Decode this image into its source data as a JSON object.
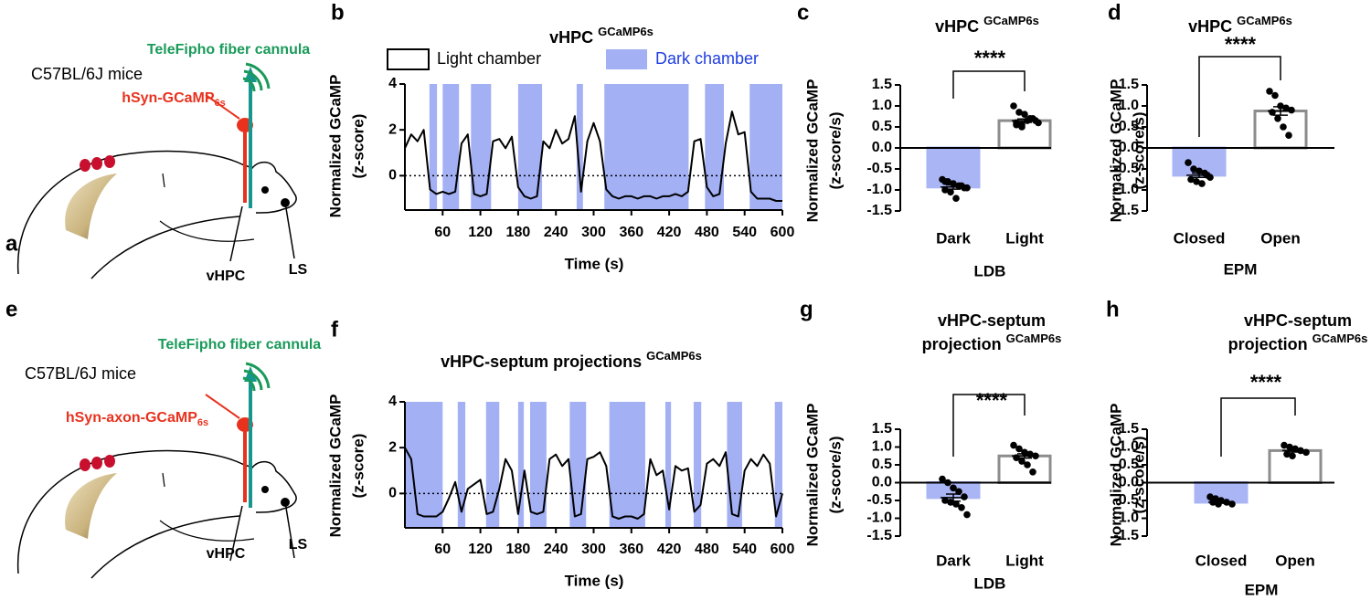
{
  "diagrams": [
    {
      "panel": "a",
      "cannula": "TeleFipho fiber cannula",
      "strain": "C57BL/6J mice",
      "virus": "hSyn-GCaMP",
      "virus_subscript": "6s",
      "region": "vHPC",
      "target": "LS"
    },
    {
      "panel": "e",
      "cannula": "TeleFipho fiber cannula",
      "strain": "C57BL/6J mice",
      "virus": "hSyn-axon-GCaMP",
      "virus_subscript": "6s",
      "region": "vHPC",
      "target": "LS"
    }
  ],
  "chart_data": [
    {
      "panel": "b",
      "type": "line",
      "title": "vHPC",
      "title_superscript": "GCaMP6s",
      "xlabel": "Time (s)",
      "ylabel": [
        "Normalized GCaMP",
        "(z-score)"
      ],
      "x": [
        0,
        10,
        20,
        30,
        40,
        50,
        60,
        70,
        80,
        90,
        100,
        110,
        120,
        130,
        140,
        150,
        160,
        170,
        180,
        190,
        200,
        210,
        220,
        230,
        240,
        250,
        260,
        270,
        280,
        290,
        300,
        310,
        320,
        330,
        340,
        350,
        360,
        370,
        380,
        390,
        400,
        410,
        420,
        430,
        440,
        450,
        460,
        470,
        480,
        490,
        500,
        510,
        520,
        530,
        540,
        550,
        560,
        570,
        580,
        590,
        600
      ],
      "series": [
        {
          "color": "#000000",
          "values": [
            1.2,
            1.8,
            1.5,
            2.0,
            -0.6,
            -0.8,
            -0.7,
            -0.8,
            -0.7,
            1.4,
            1.8,
            -0.8,
            -0.9,
            -0.8,
            1.5,
            1.6,
            1.2,
            1.7,
            -0.5,
            -0.9,
            -1.0,
            -0.9,
            1.5,
            1.2,
            2.0,
            1.4,
            1.6,
            2.6,
            -0.7,
            1.5,
            2.3,
            1.5,
            -0.6,
            -0.9,
            -1.0,
            -0.9,
            -0.9,
            -1.0,
            -0.9,
            -0.9,
            -1.0,
            -0.9,
            -0.9,
            -0.8,
            -0.9,
            -0.7,
            1.5,
            1.6,
            -0.5,
            -0.9,
            -0.8,
            1.4,
            2.8,
            1.8,
            1.9,
            -0.7,
            -1.0,
            -1.0,
            -1.0,
            -1.1,
            -1.1
          ]
        }
      ],
      "shaded": [
        [
          39,
          51
        ],
        [
          60,
          86
        ],
        [
          105,
          137
        ],
        [
          180,
          218
        ],
        [
          273,
          283
        ],
        [
          317,
          451
        ],
        [
          477,
          507
        ],
        [
          548,
          600
        ]
      ],
      "shade_color": "#a3b0f4",
      "reference_line": 0,
      "legend": [
        {
          "name": "Light chamber",
          "color": "#ffffff"
        },
        {
          "name": "Dark chamber",
          "color": "#a3b0f4",
          "text_color": "#1f3de0"
        }
      ],
      "xlim": [
        0,
        600
      ],
      "ylim": [
        -1.5,
        4
      ],
      "xticks": [
        60,
        120,
        180,
        240,
        300,
        360,
        420,
        480,
        540,
        600
      ],
      "yticks": [
        0,
        2,
        4
      ]
    },
    {
      "panel": "c",
      "type": "bar",
      "title": "vHPC",
      "title_superscript": "GCaMP6s",
      "xlabel": "LDB",
      "ylabel": [
        "Normalized GCaMP",
        "(z-score/s)"
      ],
      "categories": [
        "Dark",
        "Light"
      ],
      "values": [
        -0.93,
        0.65
      ],
      "errors": [
        0.05,
        0.04
      ],
      "colors": [
        "#a9b5f4",
        "#ffffff"
      ],
      "edge_colors": [
        "#a9b5f4",
        "#8c8c8c"
      ],
      "points": [
        [
          -0.75,
          -0.8,
          -0.85,
          -0.9,
          -0.95,
          -1.0,
          -1.05,
          -1.2,
          -0.9,
          -0.95,
          -0.8
        ],
        [
          1.0,
          0.85,
          0.8,
          0.7,
          0.65,
          0.6,
          0.55,
          0.65,
          0.7,
          0.6,
          0.55,
          0.5
        ]
      ],
      "significance": "****",
      "ylim": [
        -1.5,
        1.5
      ],
      "yticks": [
        -1.5,
        {
          "value": -1,
          "label": "-1.0"
        },
        -0.5,
        {
          "value": 0,
          "label": "0.0"
        },
        0.5,
        {
          "value": 1,
          "label": "1.0"
        },
        1.5
      ]
    },
    {
      "panel": "d",
      "type": "bar",
      "title": "vHPC",
      "title_superscript": "GCaMP6s",
      "xlabel": "EPM",
      "ylabel": [
        "Normalized GCaMP",
        "(z-score/s)"
      ],
      "categories": [
        "Closed",
        "Open"
      ],
      "values": [
        -0.65,
        0.88
      ],
      "errors": [
        0.05,
        0.1
      ],
      "colors": [
        "#a9b5f4",
        "#ffffff"
      ],
      "edge_colors": [
        "#a9b5f4",
        "#8c8c8c"
      ],
      "points": [
        [
          -0.35,
          -0.5,
          -0.55,
          -0.6,
          -0.7,
          -0.75,
          -0.8,
          -0.85,
          -0.65
        ],
        [
          1.35,
          1.25,
          1.0,
          0.95,
          0.9,
          0.85,
          0.7,
          0.5,
          0.3
        ]
      ],
      "significance": "****",
      "ylim": [
        -1.5,
        1.5
      ],
      "yticks": [
        -1.5,
        {
          "value": -1,
          "label": "-1.0"
        },
        -0.5,
        {
          "value": 0,
          "label": "0.0"
        },
        0.5,
        {
          "value": 1,
          "label": "1.0"
        },
        1.5
      ]
    },
    {
      "panel": "f",
      "type": "line",
      "title": "vHPC-septum projections",
      "title_superscript": "GCaMP6s",
      "xlabel": "Time (s)",
      "ylabel": [
        "Normalized GCaMP",
        "(z-score)"
      ],
      "x": [
        0,
        10,
        20,
        30,
        40,
        50,
        60,
        70,
        80,
        90,
        100,
        110,
        120,
        130,
        140,
        150,
        160,
        170,
        180,
        190,
        200,
        210,
        220,
        230,
        240,
        250,
        260,
        270,
        280,
        290,
        300,
        310,
        320,
        330,
        340,
        350,
        360,
        370,
        380,
        390,
        400,
        410,
        420,
        430,
        440,
        450,
        460,
        470,
        480,
        490,
        500,
        510,
        520,
        530,
        540,
        550,
        560,
        570,
        580,
        590,
        600
      ],
      "series": [
        {
          "color": "#000000",
          "values": [
            2.0,
            1.5,
            -0.9,
            -1.0,
            -1.0,
            -1.0,
            -0.8,
            -0.2,
            0.5,
            -0.8,
            0.2,
            0.4,
            0.6,
            -0.9,
            -0.8,
            0.2,
            1.5,
            1.0,
            -0.9,
            1.0,
            -0.8,
            -0.9,
            -0.8,
            1.5,
            1.7,
            1.2,
            1.5,
            -1.0,
            -0.9,
            1.5,
            1.6,
            1.8,
            1.2,
            -1.0,
            -1.1,
            -1.0,
            -1.0,
            -1.1,
            -0.9,
            1.5,
            0.8,
            1.0,
            -0.7,
            1.2,
            1.0,
            1.1,
            -0.8,
            -0.5,
            1.3,
            1.5,
            1.2,
            1.8,
            -0.9,
            -1.0,
            1.0,
            1.5,
            1.2,
            1.7,
            1.3,
            -1.0,
            0.0
          ]
        }
      ],
      "shaded": [
        [
          0,
          60
        ],
        [
          84,
          96
        ],
        [
          129,
          150
        ],
        [
          180,
          189
        ],
        [
          199,
          225
        ],
        [
          262,
          288
        ],
        [
          325,
          382
        ],
        [
          414,
          423
        ],
        [
          459,
          471
        ],
        [
          512,
          536
        ],
        [
          588,
          600
        ]
      ],
      "shade_color": "#a3b0f4",
      "reference_line": 0,
      "xlim": [
        0,
        600
      ],
      "ylim": [
        -1.5,
        4
      ],
      "xticks": [
        60,
        120,
        180,
        240,
        300,
        360,
        420,
        480,
        540,
        600
      ],
      "yticks": [
        0,
        2,
        4
      ]
    },
    {
      "panel": "g",
      "type": "bar",
      "title": [
        "vHPC-septum",
        "projection"
      ],
      "title_superscript": "GCaMP6s",
      "xlabel": "LDB",
      "ylabel": [
        "Normalized GCaMP",
        "(z-score/s)"
      ],
      "categories": [
        "Dark",
        "Light"
      ],
      "values": [
        -0.42,
        0.75
      ],
      "errors": [
        0.1,
        0.06
      ],
      "colors": [
        "#a9b5f4",
        "#ffffff"
      ],
      "edge_colors": [
        "#a9b5f4",
        "#8c8c8c"
      ],
      "points": [
        [
          0.1,
          0.0,
          -0.15,
          -0.25,
          -0.4,
          -0.5,
          -0.55,
          -0.6,
          -0.7,
          -0.9
        ],
        [
          1.05,
          0.95,
          0.85,
          0.8,
          0.75,
          0.7,
          0.6,
          0.5,
          0.3
        ]
      ],
      "significance": "****",
      "ylim": [
        -1.5,
        1.5
      ],
      "yticks": [
        -1.5,
        {
          "value": -1,
          "label": "-1.0"
        },
        -0.5,
        {
          "value": 0,
          "label": "0.0"
        },
        0.5,
        {
          "value": 1,
          "label": "1.0"
        },
        1.5
      ]
    },
    {
      "panel": "h",
      "type": "bar",
      "title": [
        "vHPC-septum",
        "projection"
      ],
      "title_superscript": "GCaMP6s",
      "xlabel": "EPM",
      "ylabel": [
        "Normalized GCaMP",
        "(z-score/s)"
      ],
      "categories": [
        "Closed",
        "Open"
      ],
      "values": [
        -0.55,
        0.9
      ],
      "errors": [
        0.03,
        0.04
      ],
      "colors": [
        "#a9b5f4",
        "#ffffff"
      ],
      "edge_colors": [
        "#a9b5f4",
        "#8c8c8c"
      ],
      "points": [
        [
          -0.4,
          -0.45,
          -0.5,
          -0.55,
          -0.6,
          -0.55,
          -0.6
        ],
        [
          1.05,
          1.0,
          0.95,
          0.9,
          0.85,
          0.8,
          0.75
        ]
      ],
      "significance": "****",
      "ylim": [
        -1.5,
        1.5
      ],
      "yticks": [
        -1.5,
        {
          "value": -1,
          "label": "-1.0"
        },
        -0.5,
        {
          "value": 0,
          "label": "0.0"
        },
        0.5,
        {
          "value": 1,
          "label": "1.0"
        },
        1.5
      ]
    }
  ]
}
